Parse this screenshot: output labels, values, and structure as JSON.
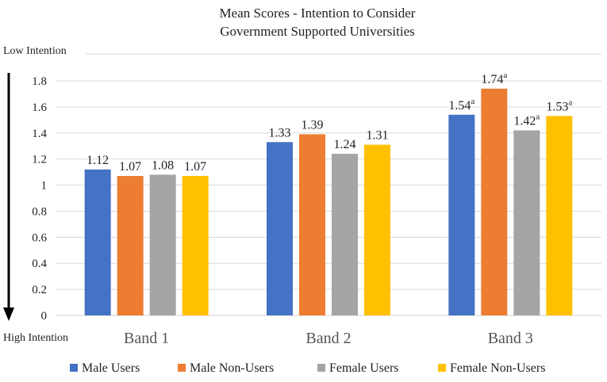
{
  "chart_data": {
    "type": "bar",
    "title": [
      "Mean Scores - Intention to Consider",
      "Government Supported Universities"
    ],
    "categories": [
      "Band 1",
      "Band 2",
      "Band 3"
    ],
    "ylim": [
      0,
      1.8
    ],
    "yticks": [
      "0",
      "0.2",
      "0.4",
      "0.6",
      "0.8",
      "1",
      "1.2",
      "1.4",
      "1.6",
      "1.8"
    ],
    "top_label": "Low Intention",
    "bottom_label": "High Intention",
    "grid": true,
    "legend_position": "bottom",
    "series": [
      {
        "name": "Male Users",
        "color": "#4472C4",
        "values": [
          1.12,
          1.33,
          1.54
        ],
        "labels": [
          "1.12",
          "1.33",
          "1.54"
        ],
        "sup": [
          "",
          "",
          "a"
        ]
      },
      {
        "name": "Male Non-Users",
        "color": "#ED7D31",
        "values": [
          1.07,
          1.39,
          1.74
        ],
        "labels": [
          "1.07",
          "1.39",
          "1.74"
        ],
        "sup": [
          "",
          "",
          "a"
        ]
      },
      {
        "name": "Female Users",
        "color": "#A5A5A5",
        "values": [
          1.08,
          1.24,
          1.42
        ],
        "labels": [
          "1.08",
          "1.24",
          "1.42"
        ],
        "sup": [
          "",
          "",
          "a"
        ]
      },
      {
        "name": "Female Non-Users",
        "color": "#FFC000",
        "values": [
          1.07,
          1.31,
          1.53
        ],
        "labels": [
          "1.07",
          "1.31",
          "1.53"
        ],
        "sup": [
          "",
          "",
          "a"
        ]
      }
    ]
  }
}
